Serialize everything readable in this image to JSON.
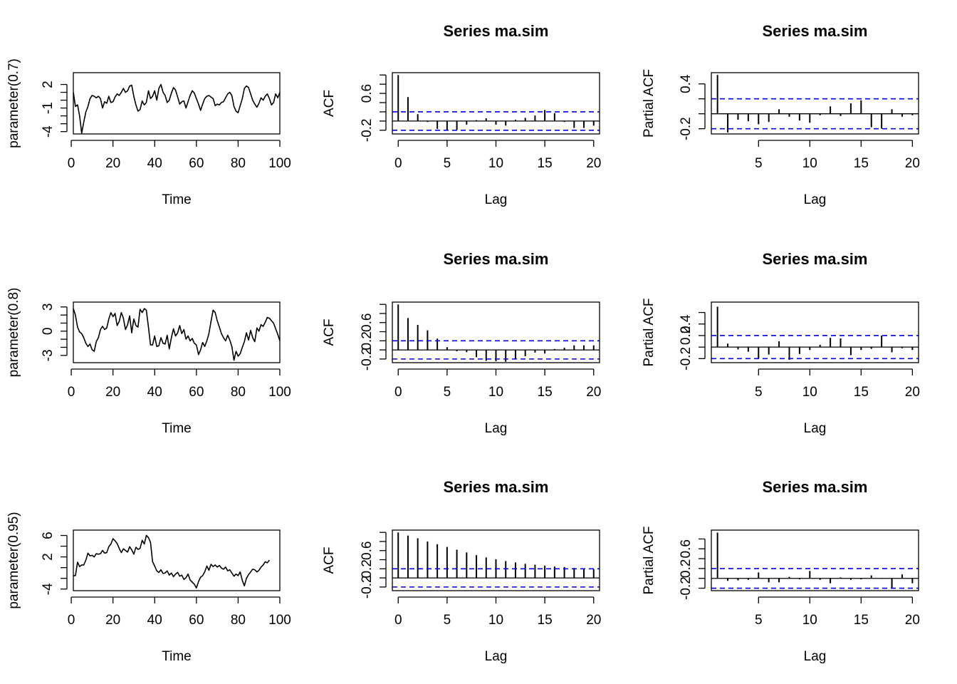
{
  "chart_data": [
    {
      "type": "line",
      "row": 0,
      "col": 0,
      "title": "",
      "xlabel": "Time",
      "ylabel": "parameter(0.7)",
      "xlim": [
        1,
        100
      ],
      "ylim": [
        -4.3,
        3.5
      ],
      "xticks": [
        0,
        20,
        40,
        60,
        80,
        100
      ],
      "yticks": [
        -4,
        -1,
        2
      ],
      "yticks_all": [
        -4,
        -3,
        -2,
        -1,
        0,
        1,
        2
      ],
      "series": [
        {
          "values": [
            1.0,
            -0.8,
            -0.6,
            -2.0,
            -4.2,
            -2.8,
            -1.5,
            -0.8,
            0.2,
            0.6,
            0.5,
            0.3,
            0.5,
            0.2,
            -1.0,
            -0.2,
            -0.4,
            0.5,
            -0.3,
            -0.2,
            0.4,
            0.8,
            0.6,
            1.0,
            1.5,
            1.0,
            1.2,
            1.8,
            1.9,
            0.5,
            -0.6,
            -1.4,
            -1.2,
            -0.1,
            -0.6,
            -0.3,
            1.2,
            0.2,
            0.5,
            1.2,
            0.0,
            1.5,
            2.0,
            1.0,
            0.6,
            -0.3,
            0.0,
            0.9,
            1.6,
            1.3,
            0.4,
            -0.5,
            -0.2,
            -0.1,
            -1.0,
            -0.2,
            0.6,
            1.2,
            0.9,
            0.2,
            -0.5,
            -1.3,
            -0.5,
            0.2,
            0.5,
            0.6,
            0.4,
            0.2,
            -0.7,
            -0.5,
            -0.6,
            -0.3,
            -0.2,
            0.3,
            0.8,
            1.0,
            0.6,
            -0.8,
            -1.4,
            -1.6,
            -0.7,
            0.2,
            1.5,
            1.8,
            1.6,
            0.8,
            0.0,
            -0.5,
            -0.9,
            -0.4,
            0.3,
            0.0,
            0.5,
            0.8,
            0.2,
            -0.6,
            -0.3,
            0.8,
            0.3,
            1.0
          ]
        }
      ]
    },
    {
      "type": "bar",
      "row": 0,
      "col": 1,
      "title": "Series  ma.sim",
      "xlabel": "Lag",
      "ylabel": "ACF",
      "xlim": [
        -0.6,
        20.6
      ],
      "ylim": [
        -0.28,
        1.05
      ],
      "xticks": [
        0,
        5,
        10,
        15,
        20
      ],
      "yticks": [
        -0.2,
        0.6
      ],
      "yticks_all": [
        -0.2,
        0.0,
        0.2,
        0.4,
        0.6,
        0.8,
        1.0
      ],
      "ci": 0.2,
      "x": [
        0,
        1,
        2,
        3,
        4,
        5,
        6,
        7,
        8,
        9,
        10,
        11,
        12,
        13,
        14,
        15,
        16,
        17,
        18,
        19,
        20
      ],
      "values": [
        1.0,
        0.52,
        0.15,
        -0.02,
        -0.17,
        -0.2,
        -0.19,
        -0.08,
        0.02,
        0.06,
        -0.08,
        -0.1,
        0.03,
        0.07,
        0.12,
        0.24,
        0.17,
        -0.02,
        -0.15,
        -0.15,
        -0.1
      ]
    },
    {
      "type": "bar",
      "row": 0,
      "col": 2,
      "title": "Series  ma.sim",
      "xlabel": "Lag",
      "ylabel": "Partial ACF",
      "xlim": [
        0.4,
        20.6
      ],
      "ylim": [
        -0.27,
        0.55
      ],
      "xticks": [
        5,
        10,
        15,
        20
      ],
      "yticks": [
        -0.2,
        0.4
      ],
      "yticks_all": [
        -0.2,
        0.0,
        0.2,
        0.4
      ],
      "ci": 0.2,
      "x": [
        1,
        2,
        3,
        4,
        5,
        6,
        7,
        8,
        9,
        10,
        11,
        12,
        13,
        14,
        15,
        16,
        17,
        18,
        19,
        20
      ],
      "values": [
        0.52,
        -0.25,
        -0.08,
        -0.1,
        -0.14,
        -0.11,
        0.06,
        -0.04,
        -0.09,
        -0.12,
        -0.02,
        0.1,
        -0.03,
        0.14,
        0.18,
        -0.18,
        -0.2,
        0.06,
        -0.04,
        -0.02
      ]
    },
    {
      "type": "line",
      "row": 1,
      "col": 0,
      "title": "",
      "xlabel": "Time",
      "ylabel": "parameter(0.8)",
      "xlim": [
        1,
        100
      ],
      "ylim": [
        -3.9,
        3.6
      ],
      "xticks": [
        0,
        20,
        40,
        60,
        80,
        100
      ],
      "yticks": [
        -3,
        0,
        3
      ],
      "yticks_all": [
        -3,
        -2,
        -1,
        0,
        1,
        2,
        3
      ],
      "series": [
        {
          "values": [
            2.8,
            2.0,
            0.5,
            -0.1,
            -0.3,
            -0.8,
            -1.5,
            -1.9,
            -1.6,
            -2.3,
            -2.5,
            -1.3,
            -0.8,
            0.2,
            0.6,
            0.2,
            0.4,
            1.5,
            2.3,
            1.8,
            2.2,
            0.7,
            1.2,
            2.3,
            1.6,
            0.2,
            0.8,
            1.9,
            -0.2,
            1.5,
            0.7,
            0.5,
            2.7,
            2.3,
            2.8,
            2.6,
            0.5,
            -1.7,
            -1.7,
            -0.6,
            -1.9,
            -1.8,
            -0.8,
            -1.5,
            -1.6,
            -0.5,
            -2.2,
            -0.8,
            0.3,
            -0.6,
            -0.2,
            0.7,
            -0.3,
            0.2,
            -1.0,
            -0.6,
            -1.2,
            -0.9,
            -1.5,
            -1.7,
            -2.9,
            -2.3,
            -1.4,
            -1.9,
            -1.2,
            -0.3,
            1.2,
            2.6,
            2.3,
            1.3,
            0.5,
            -0.3,
            -0.8,
            -1.2,
            -0.5,
            -1.1,
            -1.9,
            -3.6,
            -2.5,
            -3.1,
            -2.8,
            -2.0,
            -1.3,
            -0.2,
            -1.1,
            0.1,
            -0.8,
            -1.3,
            0.4,
            0.0,
            0.8,
            0.6,
            1.1,
            1.7,
            1.6,
            1.3,
            1.0,
            0.3,
            -0.4,
            -1.2
          ]
        }
      ]
    },
    {
      "type": "bar",
      "row": 1,
      "col": 1,
      "title": "Series  ma.sim",
      "xlabel": "Lag",
      "ylabel": "ACF",
      "xlim": [
        -0.6,
        20.6
      ],
      "ylim": [
        -0.28,
        1.05
      ],
      "xticks": [
        0,
        5,
        10,
        15,
        20
      ],
      "yticks": [
        -0.2,
        0.2,
        0.6
      ],
      "yticks_all": [
        -0.2,
        0.0,
        0.2,
        0.4,
        0.6,
        0.8,
        1.0
      ],
      "ci": 0.2,
      "x": [
        0,
        1,
        2,
        3,
        4,
        5,
        6,
        7,
        8,
        9,
        10,
        11,
        12,
        13,
        14,
        15,
        16,
        17,
        18,
        19,
        20
      ],
      "values": [
        1.0,
        0.7,
        0.55,
        0.43,
        0.25,
        0.06,
        -0.03,
        -0.05,
        -0.16,
        -0.24,
        -0.25,
        -0.26,
        -0.2,
        -0.14,
        -0.06,
        -0.08,
        0.02,
        0.05,
        0.1,
        0.1,
        0.1
      ]
    },
    {
      "type": "bar",
      "row": 1,
      "col": 2,
      "title": "Series  ma.sim",
      "xlabel": "Lag",
      "ylabel": "Partial ACF",
      "xlim": [
        0.4,
        20.6
      ],
      "ylim": [
        -0.27,
        0.78
      ],
      "xticks": [
        5,
        10,
        15,
        20
      ],
      "yticks": [
        -0.2,
        0.2,
        0.4
      ],
      "yticks_all": [
        -0.2,
        0.0,
        0.2,
        0.4,
        0.6
      ],
      "ci": 0.2,
      "x": [
        1,
        2,
        3,
        4,
        5,
        6,
        7,
        8,
        9,
        10,
        11,
        12,
        13,
        14,
        15,
        16,
        17,
        18,
        19,
        20
      ],
      "values": [
        0.7,
        0.06,
        -0.04,
        -0.08,
        -0.2,
        -0.13,
        0.1,
        -0.22,
        -0.12,
        -0.05,
        0.04,
        0.16,
        0.15,
        -0.14,
        -0.05,
        -0.03,
        0.2,
        -0.09,
        -0.02,
        -0.05
      ]
    },
    {
      "type": "line",
      "row": 2,
      "col": 0,
      "title": "",
      "xlabel": "Time",
      "ylabel": "parameter(0.95)",
      "xlim": [
        1,
        100
      ],
      "ylim": [
        -4.3,
        7.0
      ],
      "xticks": [
        0,
        20,
        40,
        60,
        80,
        100
      ],
      "yticks": [
        -4,
        2,
        6
      ],
      "yticks_all": [
        -4,
        -2,
        0,
        2,
        4,
        6
      ],
      "series": [
        {
          "values": [
            -1.5,
            -1.5,
            1.0,
            0.2,
            0.5,
            0.5,
            1.4,
            2.7,
            2.2,
            2.3,
            2.0,
            2.6,
            2.5,
            2.6,
            3.2,
            2.7,
            2.8,
            3.9,
            4.4,
            5.4,
            5.0,
            4.5,
            3.6,
            2.8,
            3.5,
            3.2,
            2.9,
            3.9,
            3.3,
            2.5,
            3.8,
            3.4,
            3.6,
            5.1,
            4.4,
            6.0,
            5.6,
            4.7,
            1.1,
            0.3,
            -0.6,
            -0.9,
            -0.4,
            -1.1,
            -1.0,
            -0.6,
            -1.4,
            -1.0,
            -1.7,
            -1.2,
            -0.9,
            -1.6,
            -1.4,
            -2.2,
            -1.9,
            -1.2,
            -2.3,
            -2.7,
            -3.1,
            -3.8,
            -2.6,
            -1.8,
            -1.5,
            -0.8,
            0.3,
            -0.5,
            0.6,
            0.2,
            0.5,
            0.1,
            0.4,
            -0.1,
            -0.3,
            0.1,
            -0.6,
            -0.4,
            -1.0,
            -1.6,
            -1.2,
            -1.5,
            -0.8,
            -2.4,
            -3.4,
            -2.0,
            -1.3,
            -0.8,
            -0.3,
            -0.4,
            -0.8,
            -0.5,
            0.1,
            0.5,
            1.1,
            0.9,
            1.4
          ]
        }
      ]
    },
    {
      "type": "bar",
      "row": 2,
      "col": 1,
      "title": "Series  ma.sim",
      "xlabel": "Lag",
      "ylabel": "ACF",
      "xlim": [
        -0.6,
        20.6
      ],
      "ylim": [
        -0.28,
        1.05
      ],
      "xticks": [
        0,
        5,
        10,
        15,
        20
      ],
      "yticks": [
        -0.2,
        0.2,
        0.6
      ],
      "yticks_all": [
        -0.2,
        0.0,
        0.2,
        0.4,
        0.6,
        0.8,
        1.0
      ],
      "ci": 0.2,
      "x": [
        0,
        1,
        2,
        3,
        4,
        5,
        6,
        7,
        8,
        9,
        10,
        11,
        12,
        13,
        14,
        15,
        16,
        17,
        18,
        19,
        20
      ],
      "values": [
        1.0,
        0.93,
        0.87,
        0.8,
        0.74,
        0.68,
        0.62,
        0.56,
        0.5,
        0.45,
        0.41,
        0.37,
        0.34,
        0.31,
        0.29,
        0.27,
        0.25,
        0.24,
        0.22,
        0.2,
        0.19
      ]
    },
    {
      "type": "bar",
      "row": 2,
      "col": 2,
      "title": "Series  ma.sim",
      "xlabel": "Lag",
      "ylabel": "Partial ACF",
      "xlim": [
        0.4,
        20.6
      ],
      "ylim": [
        -0.25,
        0.98
      ],
      "xticks": [
        5,
        10,
        15,
        20
      ],
      "yticks": [
        -0.2,
        0.2,
        0.6
      ],
      "yticks_all": [
        -0.2,
        0.0,
        0.2,
        0.4,
        0.6,
        0.8
      ],
      "ci": 0.2,
      "x": [
        1,
        2,
        3,
        4,
        5,
        6,
        7,
        8,
        9,
        10,
        11,
        12,
        13,
        14,
        15,
        16,
        17,
        18,
        19,
        20
      ],
      "values": [
        0.93,
        -0.05,
        -0.04,
        -0.03,
        0.12,
        -0.08,
        -0.08,
        0.03,
        -0.02,
        0.15,
        -0.03,
        -0.1,
        0.02,
        -0.03,
        -0.02,
        0.06,
        -0.01,
        -0.2,
        0.08,
        -0.1
      ]
    }
  ]
}
